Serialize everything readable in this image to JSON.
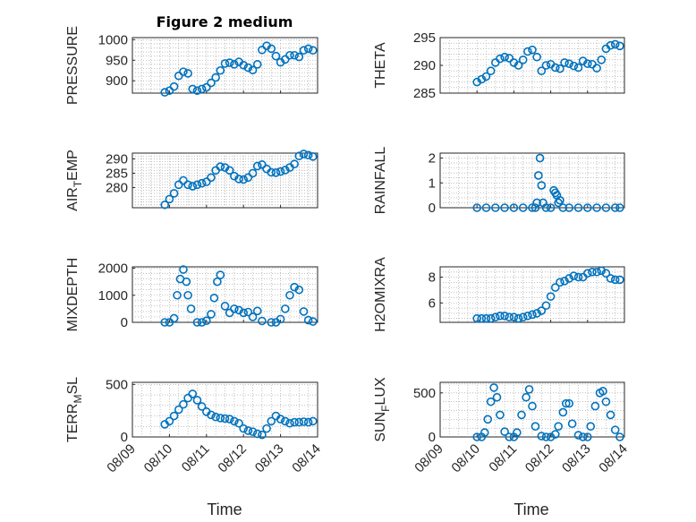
{
  "figure_title": "Figure 2 medium",
  "x_axis_label": "Time",
  "colors": {
    "marker": "#0072BD",
    "axis": "#262626",
    "grid": "#9a9a9a"
  },
  "chart_data": [
    {
      "type": "scatter",
      "name": "pressure",
      "ylabel": "PRESSURE",
      "sub": "",
      "xlim": [
        "08/09",
        "08/14"
      ],
      "ylim": [
        870,
        1005
      ],
      "yticks": [
        900,
        950,
        1000
      ],
      "xticklabels": [],
      "x": [
        "08/09 21:00",
        "08/10 00:00",
        "08/10 03:00",
        "08/10 06:00",
        "08/10 09:00",
        "08/10 12:00",
        "08/10 15:00",
        "08/10 18:00",
        "08/10 21:00",
        "08/11 00:00",
        "08/11 03:00",
        "08/11 06:00",
        "08/11 09:00",
        "08/11 12:00",
        "08/11 15:00",
        "08/11 18:00",
        "08/11 21:00",
        "08/12 00:00",
        "08/12 03:00",
        "08/12 06:00",
        "08/12 09:00",
        "08/12 12:00",
        "08/12 15:00",
        "08/12 18:00",
        "08/12 21:00",
        "08/13 00:00",
        "08/13 03:00",
        "08/13 06:00",
        "08/13 09:00",
        "08/13 12:00",
        "08/13 15:00",
        "08/13 18:00",
        "08/13 21:00"
      ],
      "y": [
        872,
        876,
        886,
        912,
        922,
        918,
        880,
        876,
        880,
        884,
        895,
        908,
        925,
        942,
        944,
        940,
        946,
        938,
        932,
        926,
        940,
        975,
        985,
        978,
        960,
        945,
        952,
        962,
        962,
        958,
        974,
        978,
        974
      ]
    },
    {
      "type": "scatter",
      "name": "theta",
      "ylabel": "THETA",
      "sub": "",
      "xlim": [
        "08/09",
        "08/14"
      ],
      "ylim": [
        285,
        295
      ],
      "yticks": [
        285,
        290,
        295
      ],
      "xticklabels": [],
      "x": [
        "08/10 00:00",
        "08/10 03:00",
        "08/10 06:00",
        "08/10 09:00",
        "08/10 12:00",
        "08/10 15:00",
        "08/10 18:00",
        "08/10 21:00",
        "08/11 00:00",
        "08/11 03:00",
        "08/11 06:00",
        "08/11 09:00",
        "08/11 12:00",
        "08/11 15:00",
        "08/11 18:00",
        "08/11 21:00",
        "08/12 00:00",
        "08/12 03:00",
        "08/12 06:00",
        "08/12 09:00",
        "08/12 12:00",
        "08/12 15:00",
        "08/12 18:00",
        "08/12 21:00",
        "08/13 00:00",
        "08/13 03:00",
        "08/13 06:00",
        "08/13 09:00",
        "08/13 12:00",
        "08/13 15:00",
        "08/13 18:00",
        "08/13 21:00"
      ],
      "y": [
        287,
        287.5,
        288,
        289,
        290.5,
        291.2,
        291.5,
        291.3,
        290.5,
        290,
        291,
        292.5,
        292.8,
        291.5,
        289,
        290,
        290.2,
        289.6,
        289.4,
        290.5,
        290.3,
        289.9,
        289.6,
        290.8,
        290.3,
        290.2,
        289.5,
        291,
        293,
        293.6,
        293.8,
        293.5
      ]
    },
    {
      "type": "scatter",
      "name": "air-temp",
      "ylabel": "AIR",
      "sub": "T",
      "ylabel_suffix": "EMP",
      "xlim": [
        "08/09",
        "08/14"
      ],
      "ylim": [
        273,
        292
      ],
      "yticks": [
        280,
        285,
        290
      ],
      "xticklabels": [],
      "x": [
        "08/09 21:00",
        "08/10 00:00",
        "08/10 03:00",
        "08/10 06:00",
        "08/10 09:00",
        "08/10 12:00",
        "08/10 15:00",
        "08/10 18:00",
        "08/10 21:00",
        "08/11 00:00",
        "08/11 03:00",
        "08/11 06:00",
        "08/11 09:00",
        "08/11 12:00",
        "08/11 15:00",
        "08/11 18:00",
        "08/11 21:00",
        "08/12 00:00",
        "08/12 03:00",
        "08/12 06:00",
        "08/12 09:00",
        "08/12 12:00",
        "08/12 15:00",
        "08/12 18:00",
        "08/12 21:00",
        "08/13 00:00",
        "08/13 03:00",
        "08/13 06:00",
        "08/13 09:00",
        "08/13 12:00",
        "08/13 15:00",
        "08/13 18:00",
        "08/13 21:00"
      ],
      "y": [
        274,
        276,
        278,
        281,
        282.5,
        281,
        280.5,
        281,
        281.5,
        282,
        283.5,
        286,
        287.3,
        287,
        286,
        284,
        283,
        282.8,
        283.5,
        285,
        287.5,
        288,
        286.5,
        285.3,
        285.2,
        285.6,
        286.1,
        287,
        288.2,
        291,
        291.7,
        291.3,
        290.8
      ]
    },
    {
      "type": "scatter",
      "name": "rainfall",
      "ylabel": "RAINFALL",
      "sub": "",
      "xlim": [
        "08/09",
        "08/14"
      ],
      "ylim": [
        0,
        2.2
      ],
      "yticks": [
        0,
        1,
        2
      ],
      "xticklabels": [],
      "x": [
        "08/10 00:00",
        "08/10 06:00",
        "08/10 12:00",
        "08/10 18:00",
        "08/11 00:00",
        "08/11 06:00",
        "08/11 12:00",
        "08/11 14:00",
        "08/11 15:00",
        "08/11 16:00",
        "08/11 17:00",
        "08/11 18:00",
        "08/11 19:00",
        "08/11 21:00",
        "08/12 00:00",
        "08/12 02:00",
        "08/12 03:00",
        "08/12 04:00",
        "08/12 05:00",
        "08/12 06:00",
        "08/12 08:00",
        "08/12 12:00",
        "08/12 18:00",
        "08/13 00:00",
        "08/13 06:00",
        "08/13 12:00",
        "08/13 18:00",
        "08/13 21:00"
      ],
      "y": [
        0,
        0,
        0,
        0,
        0,
        0,
        0,
        0,
        0.2,
        1.3,
        2.0,
        0.9,
        0.2,
        0,
        0,
        0.7,
        0.6,
        0.5,
        0.2,
        0.3,
        0,
        0,
        0,
        0,
        0,
        0,
        0,
        0
      ]
    },
    {
      "type": "scatter",
      "name": "mixdepth",
      "ylabel": "MIXDEPTH",
      "sub": "",
      "xlim": [
        "08/09",
        "08/14"
      ],
      "ylim": [
        0,
        2050
      ],
      "yticks": [
        0,
        1000,
        2000
      ],
      "xticklabels": [],
      "x": [
        "08/09 21:00",
        "08/10 00:00",
        "08/10 03:00",
        "08/10 05:00",
        "08/10 07:00",
        "08/10 09:00",
        "08/10 11:00",
        "08/10 12:00",
        "08/10 14:00",
        "08/10 18:00",
        "08/10 21:00",
        "08/11 00:00",
        "08/11 03:00",
        "08/11 05:00",
        "08/11 07:00",
        "08/11 09:00",
        "08/11 12:00",
        "08/11 15:00",
        "08/11 18:00",
        "08/11 21:00",
        "08/12 00:00",
        "08/12 03:00",
        "08/12 06:00",
        "08/12 09:00",
        "08/12 12:00",
        "08/12 18:00",
        "08/12 21:00",
        "08/13 00:00",
        "08/13 03:00",
        "08/13 06:00",
        "08/13 09:00",
        "08/13 12:00",
        "08/13 15:00",
        "08/13 18:00",
        "08/13 21:00"
      ],
      "y": [
        0,
        0,
        150,
        1000,
        1600,
        1950,
        1500,
        1000,
        500,
        0,
        0,
        60,
        300,
        900,
        1500,
        1750,
        600,
        350,
        500,
        450,
        350,
        380,
        200,
        420,
        50,
        0,
        0,
        120,
        500,
        1000,
        1300,
        1200,
        400,
        80,
        30
      ]
    },
    {
      "type": "scatter",
      "name": "h2omixra",
      "ylabel": "H2OMIXRA",
      "sub": "",
      "xlim": [
        "08/09",
        "08/14"
      ],
      "ylim": [
        4.5,
        8.8
      ],
      "yticks": [
        6,
        8
      ],
      "xticklabels": [],
      "x": [
        "08/10 00:00",
        "08/10 03:00",
        "08/10 06:00",
        "08/10 09:00",
        "08/10 12:00",
        "08/10 15:00",
        "08/10 18:00",
        "08/10 21:00",
        "08/11 00:00",
        "08/11 03:00",
        "08/11 06:00",
        "08/11 09:00",
        "08/11 12:00",
        "08/11 15:00",
        "08/11 18:00",
        "08/11 21:00",
        "08/12 00:00",
        "08/12 03:00",
        "08/12 06:00",
        "08/12 09:00",
        "08/12 12:00",
        "08/12 15:00",
        "08/12 18:00",
        "08/12 21:00",
        "08/13 00:00",
        "08/13 03:00",
        "08/13 06:00",
        "08/13 09:00",
        "08/13 12:00",
        "08/13 15:00",
        "08/13 18:00",
        "08/13 21:00"
      ],
      "y": [
        4.8,
        4.8,
        4.8,
        4.8,
        4.9,
        5.0,
        5.0,
        4.9,
        4.9,
        4.8,
        4.9,
        5.0,
        5.1,
        5.2,
        5.4,
        5.8,
        6.5,
        7.2,
        7.6,
        7.7,
        7.9,
        8.1,
        8.0,
        8.0,
        8.3,
        8.4,
        8.4,
        8.5,
        8.3,
        7.9,
        7.8,
        7.8
      ]
    },
    {
      "type": "scatter",
      "name": "terr-msl",
      "ylabel": "TERR",
      "sub": "M",
      "ylabel_suffix": "SL",
      "xlim": [
        "08/09",
        "08/14"
      ],
      "ylim": [
        0,
        520
      ],
      "yticks": [
        0,
        500
      ],
      "xticklabels": [
        "08/09",
        "08/10",
        "08/11",
        "08/12",
        "08/13",
        "08/14"
      ],
      "x": [
        "08/09 21:00",
        "08/10 00:00",
        "08/10 03:00",
        "08/10 06:00",
        "08/10 09:00",
        "08/10 12:00",
        "08/10 15:00",
        "08/10 18:00",
        "08/10 21:00",
        "08/11 00:00",
        "08/11 03:00",
        "08/11 06:00",
        "08/11 09:00",
        "08/11 12:00",
        "08/11 15:00",
        "08/11 18:00",
        "08/11 21:00",
        "08/12 00:00",
        "08/12 03:00",
        "08/12 06:00",
        "08/12 09:00",
        "08/12 12:00",
        "08/12 15:00",
        "08/12 18:00",
        "08/12 21:00",
        "08/13 00:00",
        "08/13 03:00",
        "08/13 06:00",
        "08/13 09:00",
        "08/13 12:00",
        "08/13 15:00",
        "08/13 18:00",
        "08/13 21:00"
      ],
      "y": [
        120,
        150,
        200,
        260,
        310,
        370,
        410,
        350,
        290,
        240,
        210,
        190,
        180,
        175,
        170,
        150,
        130,
        80,
        60,
        50,
        30,
        20,
        80,
        150,
        200,
        170,
        150,
        130,
        140,
        140,
        145,
        140,
        150
      ]
    },
    {
      "type": "scatter",
      "name": "sun-flux",
      "ylabel": "SUN",
      "sub": "F",
      "ylabel_suffix": "LUX",
      "xlim": [
        "08/09",
        "08/14"
      ],
      "ylim": [
        0,
        620
      ],
      "yticks": [
        0,
        500
      ],
      "xticklabels": [
        "08/09",
        "08/10",
        "08/11",
        "08/12",
        "08/13",
        "08/14"
      ],
      "x": [
        "08/10 00:00",
        "08/10 03:00",
        "08/10 05:00",
        "08/10 07:00",
        "08/10 09:00",
        "08/10 11:00",
        "08/10 13:00",
        "08/10 15:00",
        "08/10 18:00",
        "08/10 21:00",
        "08/11 00:00",
        "08/11 02:00",
        "08/11 05:00",
        "08/11 08:00",
        "08/11 10:00",
        "08/11 12:00",
        "08/11 14:00",
        "08/11 18:00",
        "08/11 21:00",
        "08/12 00:00",
        "08/12 03:00",
        "08/12 05:00",
        "08/12 08:00",
        "08/12 10:00",
        "08/12 12:00",
        "08/12 14:00",
        "08/12 18:00",
        "08/12 21:00",
        "08/13 00:00",
        "08/13 02:00",
        "08/13 05:00",
        "08/13 08:00",
        "08/13 10:00",
        "08/13 12:00",
        "08/13 15:00",
        "08/13 18:00",
        "08/13 21:00"
      ],
      "y": [
        0,
        0,
        50,
        200,
        400,
        560,
        450,
        250,
        60,
        0,
        0,
        50,
        250,
        450,
        540,
        350,
        120,
        10,
        0,
        0,
        30,
        120,
        280,
        380,
        380,
        150,
        20,
        0,
        0,
        120,
        350,
        500,
        520,
        400,
        250,
        80,
        0
      ]
    }
  ]
}
